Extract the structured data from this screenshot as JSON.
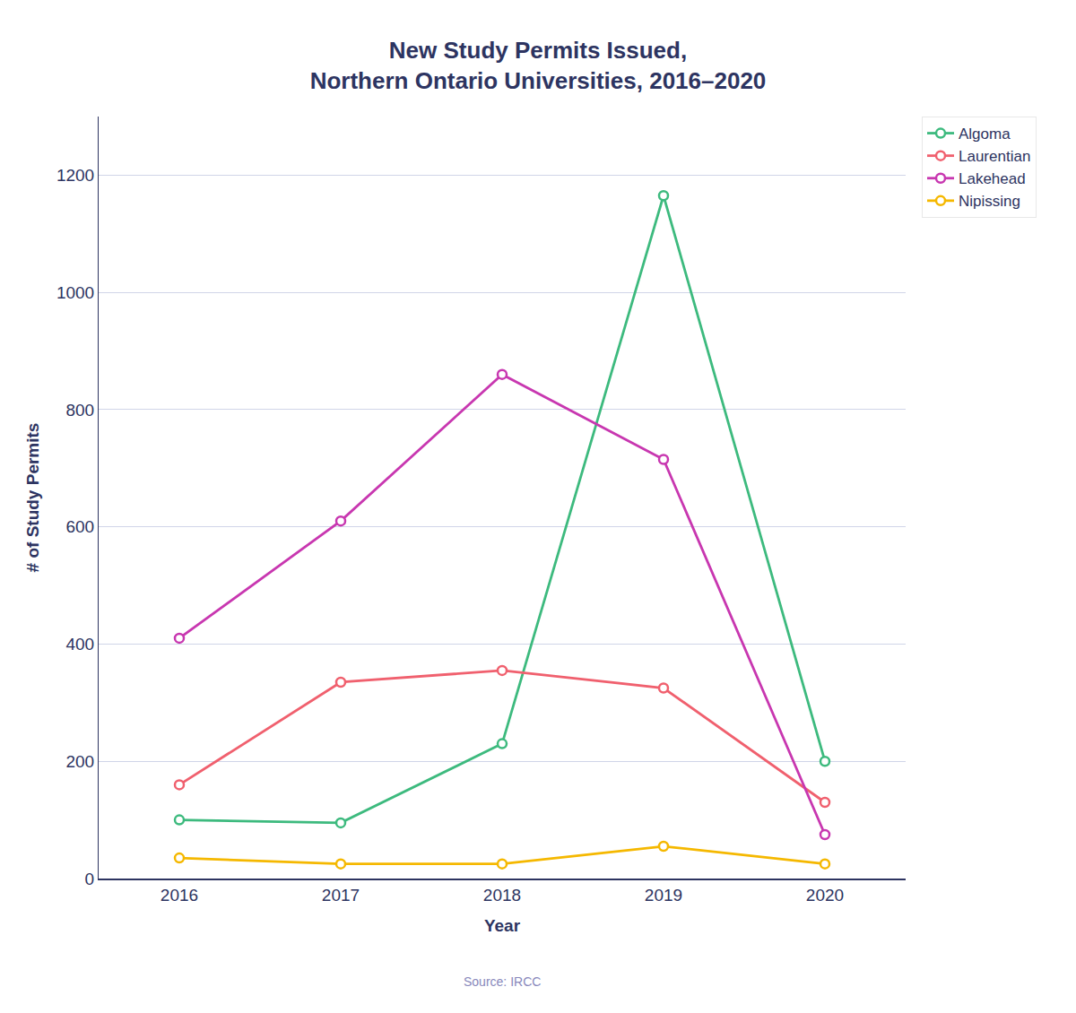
{
  "chart_data": {
    "type": "line",
    "title": "New Study Permits Issued,\nNorthern Ontario Universities, 2016–2020",
    "xlabel": "Year",
    "ylabel": "# of Study Permits",
    "x": [
      2016,
      2017,
      2018,
      2019,
      2020
    ],
    "series": [
      {
        "name": "Algoma",
        "values": [
          100,
          95,
          230,
          1165,
          200
        ],
        "color": "#3dba7e"
      },
      {
        "name": "Laurentian",
        "values": [
          160,
          335,
          355,
          325,
          130
        ],
        "color": "#f0606e"
      },
      {
        "name": "Lakehead",
        "values": [
          410,
          610,
          860,
          715,
          75
        ],
        "color": "#c837b0"
      },
      {
        "name": "Nipissing",
        "values": [
          35,
          25,
          25,
          55,
          25
        ],
        "color": "#f5b800"
      }
    ],
    "xlim": [
      2015.5,
      2020.5
    ],
    "xticks": [
      2016,
      2017,
      2018,
      2019,
      2020
    ],
    "ylim": [
      0,
      1300
    ],
    "yticks": [
      0,
      200,
      400,
      600,
      800,
      1000,
      1200
    ],
    "grid": true,
    "legend": "upper right",
    "marker": "circle",
    "annotations": [
      "Source: IRCC"
    ]
  }
}
